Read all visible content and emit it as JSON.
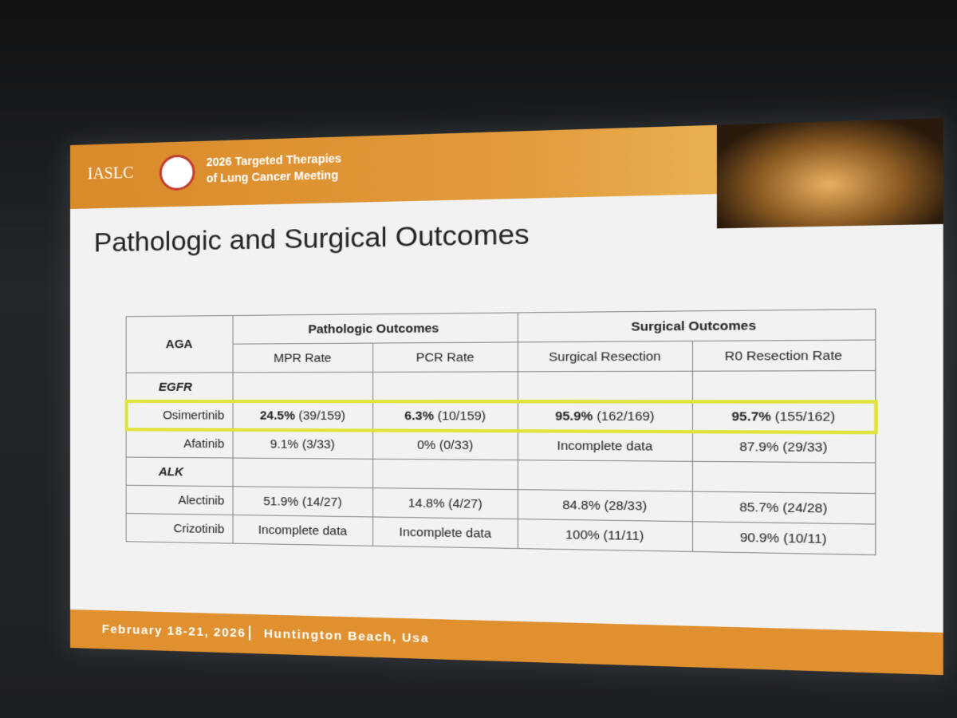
{
  "header": {
    "org": "IASLC",
    "meeting_line1": "2026 Targeted Therapies",
    "meeting_line2": "of Lung Cancer Meeting"
  },
  "slide_title": "Pathologic and Surgical Outcomes",
  "table": {
    "aga_header": "AGA",
    "group_headers": [
      "Pathologic Outcomes",
      "Surgical Outcomes"
    ],
    "columns": [
      "MPR Rate",
      "PCR Rate",
      "Surgical Resection",
      "R0 Resection Rate"
    ],
    "groups": [
      {
        "name": "EGFR",
        "rows": [
          {
            "drug": "Osimertinib",
            "cells": [
              [
                "24.5%",
                "(39/159)"
              ],
              [
                "6.3%",
                "(10/159)"
              ],
              [
                "95.9%",
                "(162/169)"
              ],
              [
                "95.7%",
                "(155/162)"
              ]
            ]
          },
          {
            "drug": "Afatinib",
            "cells": [
              [
                "9.1%",
                "(3/33)"
              ],
              [
                "0%",
                "(0/33)"
              ],
              [
                "Incomplete data"
              ],
              [
                "87.9%",
                "(29/33)"
              ]
            ]
          }
        ]
      },
      {
        "name": "ALK",
        "rows": [
          {
            "drug": "Alectinib",
            "cells": [
              [
                "51.9%",
                "(14/27)"
              ],
              [
                "14.8%",
                "(4/27)"
              ],
              [
                "84.8%",
                "(28/33)"
              ],
              [
                "85.7%",
                "(24/28)"
              ]
            ]
          },
          {
            "drug": "Crizotinib",
            "cells": [
              [
                "Incomplete data"
              ],
              [
                "Incomplete data"
              ],
              [
                "100%",
                "(11/11)"
              ],
              [
                "90.9%",
                "(10/11)"
              ]
            ]
          }
        ]
      }
    ]
  },
  "footer": {
    "dates": "February 18-21, 2026",
    "location": "Huntington Beach, Usa"
  }
}
